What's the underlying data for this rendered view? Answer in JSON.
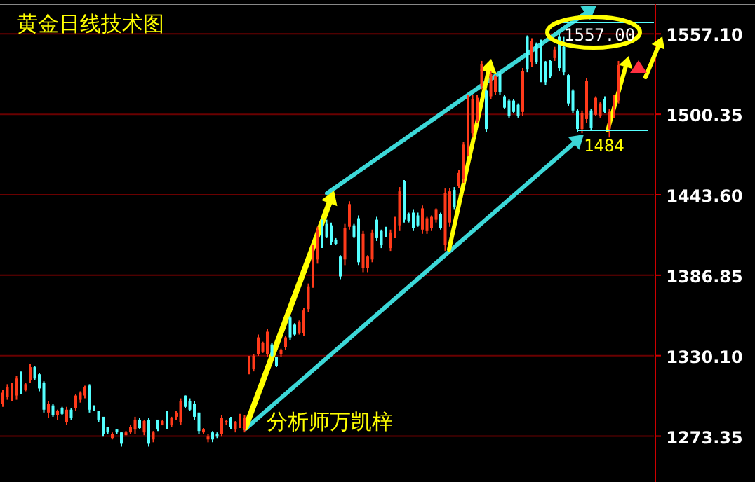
{
  "chart_data": {
    "type": "candlestick",
    "title": "黄金日线技术图",
    "annotations": [
      "分析师万凯梓",
      "1557.00",
      "1484"
    ],
    "ylim": [
      1241,
      1578
    ],
    "yticks": [
      1273.35,
      {
        "value": 1330.1,
        "label": "1330.10"
      },
      1386.85,
      {
        "value": 1443.6,
        "label": "1443.60"
      },
      1500.35,
      {
        "value": 1557.1,
        "label": "1557.10"
      }
    ],
    "grid": "y",
    "categories": [
      null,
      null,
      null,
      null,
      null,
      null,
      null,
      null,
      null,
      null,
      null,
      null,
      null,
      null,
      null,
      null,
      null,
      null,
      null,
      null,
      null,
      null,
      null,
      null,
      null,
      null,
      null,
      null,
      null,
      null,
      null,
      null,
      null,
      null,
      null,
      null,
      null,
      null,
      null,
      null,
      null,
      null,
      null,
      null,
      null,
      null,
      null,
      null,
      null,
      null,
      null,
      null,
      null,
      null,
      null,
      null,
      null,
      null,
      null,
      null,
      null,
      null,
      null,
      null,
      null,
      null,
      null,
      null,
      null,
      null,
      null,
      null,
      null,
      null,
      null,
      null,
      null,
      null,
      null,
      null,
      null,
      null,
      null,
      null,
      null,
      null,
      null,
      null,
      null,
      null,
      null,
      null,
      null,
      null,
      null,
      null,
      null,
      null,
      null,
      null,
      null,
      null,
      null,
      null,
      null,
      null,
      null,
      null,
      null,
      null,
      null,
      null,
      null,
      null,
      null,
      null,
      null,
      null,
      null,
      null,
      null,
      null,
      null,
      null,
      null,
      null,
      null,
      null,
      null,
      null,
      null,
      null,
      null,
      null,
      null,
      null
    ],
    "ohlc": [
      [
        1296,
        1306,
        1294,
        1304
      ],
      [
        1301,
        1310,
        1299,
        1308
      ],
      [
        1302,
        1311,
        1298,
        1309
      ],
      [
        1302,
        1316,
        1299,
        1314
      ],
      [
        1318,
        1319,
        1303,
        1305
      ],
      [
        1306,
        1311,
        1305,
        1310
      ],
      [
        1313,
        1324,
        1311,
        1322
      ],
      [
        1322,
        1323,
        1313,
        1314
      ],
      [
        1317,
        1318,
        1305,
        1307
      ],
      [
        1311,
        1312,
        1290,
        1292
      ],
      [
        1290,
        1298,
        1286,
        1296
      ],
      [
        1295,
        1296,
        1287,
        1288
      ],
      [
        1288,
        1292,
        1285,
        1291
      ],
      [
        1293,
        1294,
        1288,
        1289
      ],
      [
        1283,
        1294,
        1281,
        1292
      ],
      [
        1292,
        1293,
        1285,
        1286
      ],
      [
        1293,
        1303,
        1291,
        1302
      ],
      [
        1299,
        1305,
        1297,
        1304
      ],
      [
        1302,
        1309,
        1300,
        1308
      ],
      [
        1309,
        1310,
        1290,
        1292
      ],
      [
        1295,
        1295,
        1291,
        1292
      ],
      [
        1291,
        1291,
        1283,
        1285
      ],
      [
        1287,
        1287,
        1273,
        1275
      ],
      [
        1280,
        1280,
        1275,
        1276
      ],
      [
        1272,
        1276,
        1271,
        1275
      ],
      [
        1278,
        1278,
        1275,
        1276
      ],
      [
        1276,
        1276,
        1266,
        1268
      ],
      [
        1274,
        1277,
        1274,
        1276
      ],
      [
        1276,
        1281,
        1275,
        1280
      ],
      [
        1278,
        1287,
        1275,
        1285
      ],
      [
        1285,
        1286,
        1278,
        1279
      ],
      [
        1276,
        1285,
        1274,
        1284
      ],
      [
        1285,
        1286,
        1266,
        1268
      ],
      [
        1271,
        1277,
        1269,
        1276
      ],
      [
        1285,
        1285,
        1277,
        1278
      ],
      [
        1281,
        1285,
        1281,
        1284
      ],
      [
        1290,
        1291,
        1278,
        1280
      ],
      [
        1281,
        1287,
        1280,
        1286
      ],
      [
        1287,
        1291,
        1285,
        1290
      ],
      [
        1283,
        1300,
        1281,
        1298
      ],
      [
        1302,
        1302,
        1293,
        1294
      ],
      [
        1298,
        1300,
        1291,
        1292
      ],
      [
        1296,
        1298,
        1285,
        1287
      ],
      [
        1290,
        1290,
        1275,
        1277
      ],
      [
        1276,
        1279,
        1275,
        1278
      ],
      [
        1271,
        1275,
        1269,
        1273
      ],
      [
        1276,
        1277,
        1269,
        1271
      ],
      [
        1275,
        1276,
        1272,
        1273
      ],
      [
        1275,
        1288,
        1273,
        1286
      ],
      [
        1283,
        1285,
        1281,
        1284
      ],
      [
        1286,
        1287,
        1278,
        1280
      ],
      [
        1278,
        1284,
        1276,
        1283
      ],
      [
        1280,
        1289,
        1279,
        1288
      ],
      [
        1278,
        1288,
        1276,
        1286
      ],
      [
        1319,
        1330,
        1317,
        1328
      ],
      [
        1321,
        1331,
        1319,
        1330
      ],
      [
        1331,
        1345,
        1330,
        1343
      ],
      [
        1333,
        1340,
        1332,
        1339
      ],
      [
        1331,
        1349,
        1329,
        1347
      ],
      [
        1338,
        1339,
        1329,
        1330
      ],
      [
        1329,
        1329,
        1322,
        1323
      ],
      [
        1331,
        1335,
        1329,
        1334
      ],
      [
        1336,
        1344,
        1334,
        1343
      ],
      [
        1357,
        1358,
        1341,
        1343
      ],
      [
        1352,
        1353,
        1344,
        1345
      ],
      [
        1346,
        1355,
        1345,
        1354
      ],
      [
        1346,
        1364,
        1344,
        1362
      ],
      [
        1363,
        1381,
        1361,
        1379
      ],
      [
        1381,
        1408,
        1378,
        1406
      ],
      [
        1398,
        1421,
        1395,
        1419
      ],
      [
        1424,
        1426,
        1406,
        1408
      ],
      [
        1423,
        1426,
        1413,
        1414
      ],
      [
        1422,
        1424,
        1408,
        1410
      ],
      [
        1412,
        1413,
        1408,
        1409
      ],
      [
        1400,
        1401,
        1384,
        1386
      ],
      [
        1398,
        1423,
        1394,
        1420
      ],
      [
        1421,
        1439,
        1419,
        1437
      ],
      [
        1422,
        1423,
        1413,
        1414
      ],
      [
        1427,
        1429,
        1394,
        1396
      ],
      [
        1392,
        1418,
        1389,
        1416
      ],
      [
        1392,
        1401,
        1389,
        1400
      ],
      [
        1398,
        1419,
        1396,
        1417
      ],
      [
        1426,
        1428,
        1411,
        1413
      ],
      [
        1418,
        1419,
        1406,
        1408
      ],
      [
        1420,
        1421,
        1414,
        1415
      ],
      [
        1406,
        1419,
        1404,
        1417
      ],
      [
        1415,
        1428,
        1413,
        1427
      ],
      [
        1422,
        1449,
        1418,
        1446
      ],
      [
        1453,
        1454,
        1424,
        1426
      ],
      [
        1430,
        1431,
        1424,
        1425
      ],
      [
        1431,
        1433,
        1418,
        1420
      ],
      [
        1429,
        1431,
        1421,
        1422
      ],
      [
        1419,
        1436,
        1416,
        1434
      ],
      [
        1418,
        1428,
        1416,
        1427
      ],
      [
        1420,
        1429,
        1418,
        1428
      ],
      [
        1426,
        1434,
        1424,
        1433
      ],
      [
        1430,
        1431,
        1419,
        1420
      ],
      [
        1408,
        1448,
        1404,
        1445
      ],
      [
        1424,
        1448,
        1421,
        1446
      ],
      [
        1447,
        1449,
        1433,
        1435
      ],
      [
        1450,
        1461,
        1448,
        1459
      ],
      [
        1455,
        1481,
        1452,
        1479
      ],
      [
        1475,
        1514,
        1471,
        1512
      ],
      [
        1487,
        1514,
        1484,
        1511
      ],
      [
        1496,
        1514,
        1494,
        1512
      ],
      [
        1520,
        1538,
        1518,
        1536
      ],
      [
        1517,
        1518,
        1488,
        1490
      ],
      [
        1513,
        1531,
        1511,
        1529
      ],
      [
        1516,
        1528,
        1514,
        1527
      ],
      [
        1529,
        1531,
        1514,
        1516
      ],
      [
        1513,
        1514,
        1504,
        1505
      ],
      [
        1510,
        1511,
        1498,
        1499
      ],
      [
        1510,
        1511,
        1501,
        1502
      ],
      [
        1507,
        1508,
        1498,
        1499
      ],
      [
        1502,
        1533,
        1499,
        1531
      ],
      [
        1555,
        1556,
        1530,
        1532
      ],
      [
        1537,
        1554,
        1534,
        1552
      ],
      [
        1550,
        1551,
        1536,
        1537
      ],
      [
        1551,
        1553,
        1523,
        1525
      ],
      [
        1537,
        1538,
        1521,
        1523
      ],
      [
        1538,
        1539,
        1526,
        1527
      ],
      [
        1540,
        1548,
        1538,
        1546
      ],
      [
        1555,
        1557,
        1531,
        1533
      ],
      [
        1548,
        1555,
        1528,
        1530
      ],
      [
        1528,
        1529,
        1506,
        1508
      ],
      [
        1517,
        1518,
        1501,
        1503
      ],
      [
        1503,
        1504,
        1488,
        1490
      ],
      [
        1490,
        1503,
        1487,
        1501
      ],
      [
        1497,
        1526,
        1494,
        1524
      ],
      [
        1503,
        1504,
        1489,
        1491
      ],
      [
        1500,
        1513,
        1499,
        1512
      ],
      [
        1499,
        1509,
        1498,
        1508
      ],
      [
        1511,
        1513,
        1501,
        1502
      ],
      [
        1490,
        1504,
        1484,
        1502
      ],
      [
        1500,
        1514,
        1498,
        1512
      ],
      [
        1510,
        1538,
        1508,
        1535
      ]
    ]
  }
}
